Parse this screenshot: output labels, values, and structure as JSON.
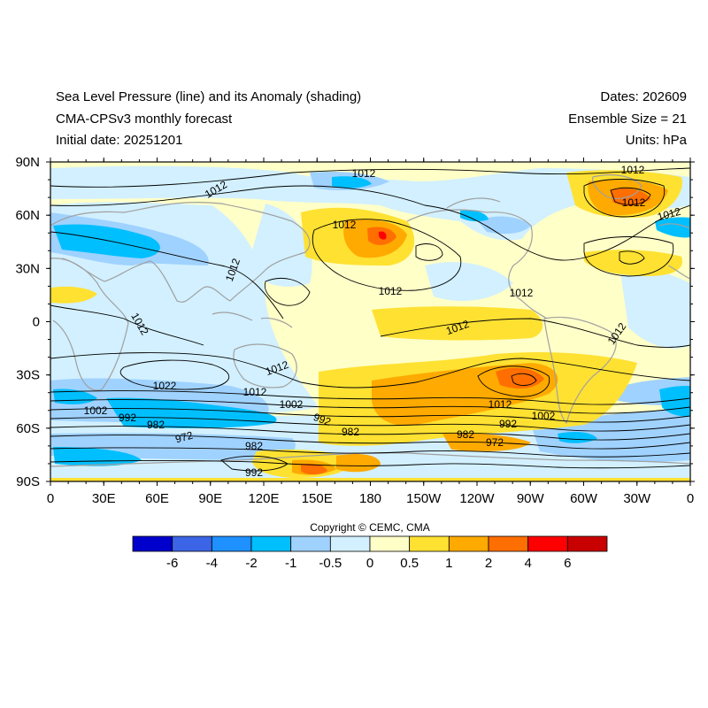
{
  "header": {
    "title_line1": "Sea Level Pressure (line) and its Anomaly (shading)",
    "title_line2": "CMA-CPSv3 monthly forecast",
    "title_line3": "Initial date: 20251201",
    "dates": "Dates: 202609",
    "ensemble": "Ensemble Size = 21",
    "units": "Units: hPa"
  },
  "map": {
    "lat_labels": [
      "90N",
      "60N",
      "30N",
      "0",
      "30S",
      "60S",
      "90S"
    ],
    "lon_labels": [
      "0",
      "30E",
      "60E",
      "90E",
      "120E",
      "150E",
      "180",
      "150W",
      "120W",
      "90W",
      "60W",
      "30W",
      "0"
    ],
    "contour_labels": [
      "1012",
      "1012",
      "1012",
      "1012",
      "1012",
      "1012",
      "1012",
      "1012",
      "1012",
      "1012",
      "1012",
      "1012",
      "1012",
      "1022",
      "1012",
      "1002",
      "992",
      "982",
      "972",
      "982",
      "1002",
      "992",
      "982",
      "1012",
      "992",
      "982",
      "972",
      "1002",
      "992"
    ]
  },
  "colorbar": {
    "colors": [
      "#0000cd",
      "#3c64e6",
      "#1e90ff",
      "#00bfff",
      "#a0d2ff",
      "#d2f0ff",
      "#ffffc8",
      "#ffe132",
      "#ffaa00",
      "#ff6e00",
      "#ff0000",
      "#c80000"
    ],
    "labels": [
      "-6",
      "-4",
      "-2",
      "-1",
      "-0.5",
      "0",
      "0.5",
      "1",
      "2",
      "4",
      "6"
    ]
  },
  "footer": {
    "copyright": "Copyright © CEMC, CMA"
  }
}
